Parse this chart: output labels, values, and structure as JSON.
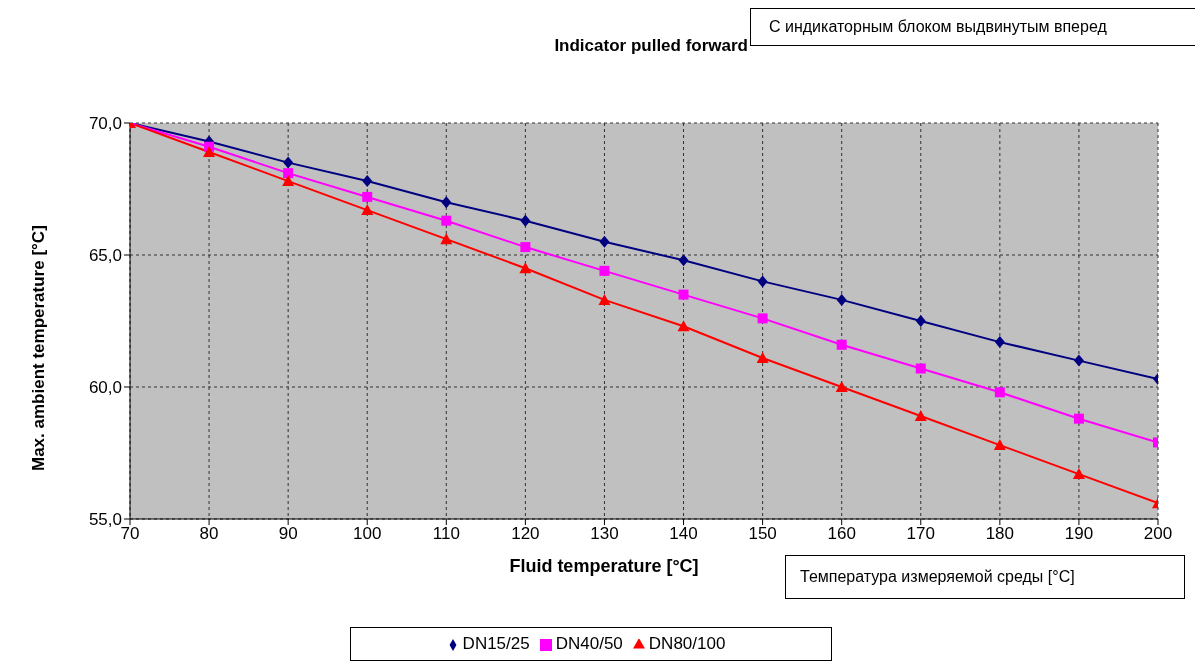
{
  "chart_data": {
    "type": "line",
    "title": "Indicator pulled forward",
    "xlabel": "Fluid temperature [°C]",
    "ylabel": "Max. ambient temperature [°C]",
    "annotations": [
      "С индикаторным блоком выдвинутым вперед",
      "Температура измеряемой среды [°C]"
    ],
    "x": [
      70,
      80,
      90,
      100,
      110,
      120,
      130,
      140,
      150,
      160,
      170,
      180,
      190,
      200
    ],
    "series": [
      {
        "name": "DN15/25",
        "color": "#000080",
        "marker": "diamond",
        "values": [
          70,
          69.3,
          68.5,
          67.8,
          67.0,
          66.3,
          65.5,
          64.8,
          64.0,
          63.3,
          62.5,
          61.7,
          61.0,
          60.3
        ]
      },
      {
        "name": "DN40/50",
        "color": "#ff00ff",
        "marker": "square",
        "values": [
          70,
          69.1,
          68.1,
          67.2,
          66.3,
          65.3,
          64.4,
          63.5,
          62.6,
          61.6,
          60.7,
          59.8,
          58.8,
          57.9
        ]
      },
      {
        "name": "DN80/100",
        "color": "#ff0000",
        "marker": "triangle",
        "values": [
          70,
          68.9,
          67.8,
          66.7,
          65.6,
          64.5,
          63.3,
          62.3,
          61.1,
          60.0,
          58.9,
          57.8,
          56.7,
          55.6
        ]
      }
    ],
    "xlim": [
      70,
      200
    ],
    "xticks": [
      70,
      80,
      90,
      100,
      110,
      120,
      130,
      140,
      150,
      160,
      170,
      180,
      190,
      200
    ],
    "ylim": [
      55,
      70
    ],
    "yticks": [
      {
        "value": 55,
        "label": "55,0"
      },
      {
        "value": 60,
        "label": "60,0"
      },
      {
        "value": 65,
        "label": "65,0"
      },
      {
        "value": 70,
        "label": "70,0"
      }
    ],
    "grid": true,
    "legend": "bottom",
    "line_style": "solid"
  }
}
